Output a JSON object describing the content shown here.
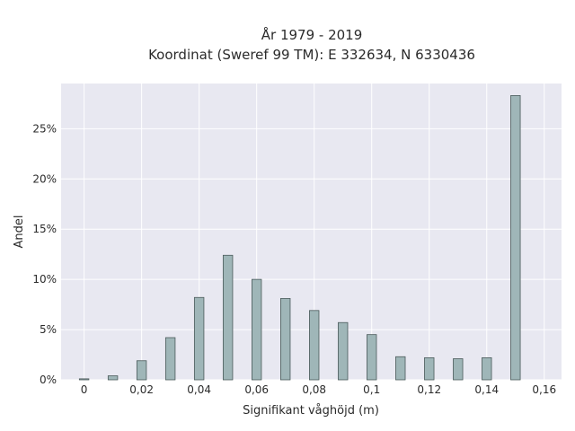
{
  "chart_data": {
    "type": "bar",
    "title_line1": "År 1979 - 2019",
    "title_line2": "Koordinat (Sweref 99 TM): E 332634, N 6330436",
    "xlabel": "Signifikant våghöjd (m)",
    "ylabel": "Andel",
    "xlim": [
      -0.008,
      0.166
    ],
    "ylim": [
      0,
      29.5
    ],
    "x_ticks": [
      {
        "value": 0,
        "label": "0"
      },
      {
        "value": 0.02,
        "label": "0,02"
      },
      {
        "value": 0.04,
        "label": "0,04"
      },
      {
        "value": 0.06,
        "label": "0,06"
      },
      {
        "value": 0.08,
        "label": "0,08"
      },
      {
        "value": 0.1,
        "label": "0,1"
      },
      {
        "value": 0.12,
        "label": "0,12"
      },
      {
        "value": 0.14,
        "label": "0,14"
      },
      {
        "value": 0.16,
        "label": "0,16"
      }
    ],
    "y_ticks": [
      {
        "value": 0,
        "label": "0%"
      },
      {
        "value": 5,
        "label": "5%"
      },
      {
        "value": 10,
        "label": "10%"
      },
      {
        "value": 15,
        "label": "15%"
      },
      {
        "value": 20,
        "label": "20%"
      },
      {
        "value": 25,
        "label": "25%"
      }
    ],
    "bar_width": 0.0033,
    "x": [
      0.0,
      0.01,
      0.02,
      0.03,
      0.04,
      0.05,
      0.06,
      0.07,
      0.08,
      0.09,
      0.1,
      0.11,
      0.12,
      0.13,
      0.14,
      0.15
    ],
    "values": [
      0.1,
      0.4,
      1.9,
      4.2,
      8.2,
      12.4,
      10.0,
      8.1,
      6.9,
      5.7,
      4.5,
      2.3,
      2.2,
      2.1,
      2.2,
      28.3
    ],
    "grid": true,
    "colors": {
      "plot_bg": "#e8e8f1",
      "grid": "#ffffff",
      "bar_fill": "#9fb6b8",
      "bar_stroke": "#4a5a5a",
      "text": "#2b2b2b"
    }
  }
}
